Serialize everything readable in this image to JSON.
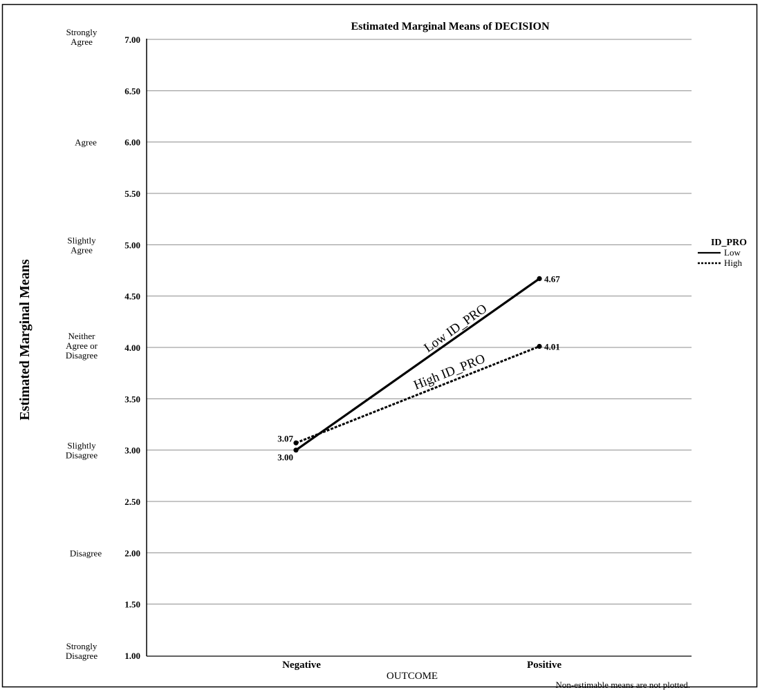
{
  "chart_data": {
    "type": "line",
    "title": "Estimated Marginal Means of DECISION",
    "xlabel": "OUTCOME",
    "ylabel": "Estimated Marginal Means",
    "categories": [
      "Negative",
      "Positive"
    ],
    "ylim": [
      1.0,
      7.0
    ],
    "yticks": [
      "1.00",
      "1.50",
      "2.00",
      "2.50",
      "3.00",
      "3.50",
      "4.00",
      "4.50",
      "5.00",
      "5.50",
      "6.00",
      "6.50",
      "7.00"
    ],
    "grid": true,
    "scale_labels": [
      {
        "text": "Strongly Agree",
        "y": 7.0
      },
      {
        "text": "Agree",
        "y": 6.0
      },
      {
        "text": "Slightly Agree",
        "y": 5.0
      },
      {
        "text": "Neither Agree or Disagree",
        "y": 4.0
      },
      {
        "text": "Slightly Disagree",
        "y": 3.0
      },
      {
        "text": "Disagree",
        "y": 2.0
      },
      {
        "text": "Strongly Disagree",
        "y": 1.0
      }
    ],
    "legend": {
      "title": "ID_PRO",
      "placement": "right",
      "entries": [
        "Low",
        "High"
      ]
    },
    "series": [
      {
        "name": "Low",
        "values": [
          3.0,
          4.67
        ],
        "labels": [
          "3.00",
          "4.67"
        ],
        "line_label": "Low ID_PRO",
        "style": "solid"
      },
      {
        "name": "High",
        "values": [
          3.07,
          4.01
        ],
        "labels": [
          "3.07",
          "4.01"
        ],
        "line_label": "High ID_PRO",
        "style": "dotted"
      }
    ],
    "footnote": "Non-estimable means are not plotted."
  },
  "colors": {
    "line": "#000000",
    "grid": "#8c8c8c",
    "border": "#000000",
    "background": "#ffffff"
  }
}
